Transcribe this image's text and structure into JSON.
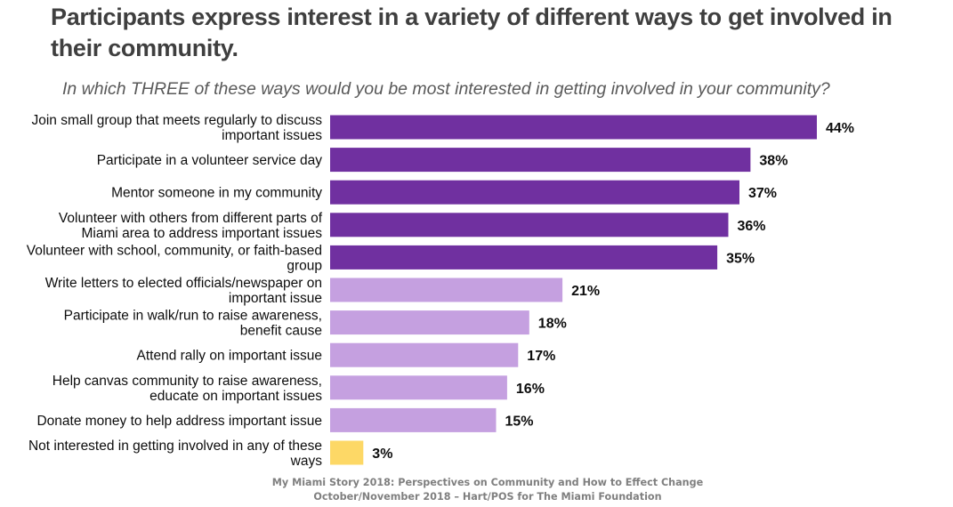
{
  "header": {
    "title": "Participants express interest in a variety of different ways to get involved in their community.",
    "subtitle": "In which THREE of these ways would you be most interested in getting involved in your community?"
  },
  "colors": {
    "top_group": "#7030a0",
    "lower_group": "#c5a0e0",
    "not_interested": "#fdd866"
  },
  "chart_data": {
    "type": "bar",
    "orientation": "horizontal",
    "title": "In which THREE of these ways would you be most interested in getting involved in your community?",
    "xlabel": "",
    "ylabel": "",
    "xlim": [
      0,
      45
    ],
    "grid": false,
    "legend": "none",
    "value_format": "percent",
    "categories": [
      [
        "Join small group that meets regularly to discuss",
        "important issues"
      ],
      [
        "Participate in a volunteer service day"
      ],
      [
        "Mentor someone in my community"
      ],
      [
        "Volunteer with others from different parts of",
        "Miami area to address important issues"
      ],
      [
        "Volunteer with school, community, or faith-based",
        "group"
      ],
      [
        "Write letters to elected officials/newspaper on",
        "important issue"
      ],
      [
        "Participate in walk/run to raise awareness,",
        "benefit cause"
      ],
      [
        "Attend rally on important issue"
      ],
      [
        "Help canvas community to raise awareness,",
        "educate on important issues"
      ],
      [
        "Donate money to help address important issue"
      ],
      [
        "Not interested in getting involved in any of these",
        "ways"
      ]
    ],
    "values": [
      44,
      38,
      37,
      36,
      35,
      21,
      18,
      17,
      16,
      15,
      3
    ],
    "data_labels": [
      "44%",
      "38%",
      "37%",
      "36%",
      "35%",
      "21%",
      "18%",
      "17%",
      "16%",
      "15%",
      "3%"
    ],
    "color_groups": [
      "top_group",
      "top_group",
      "top_group",
      "top_group",
      "top_group",
      "lower_group",
      "lower_group",
      "lower_group",
      "lower_group",
      "lower_group",
      "not_interested"
    ]
  },
  "footer": {
    "line1": "My Miami Story 2018:  Perspectives on Community and How to Effect Change",
    "line2": "October/November 2018 – Hart/POS for The Miami Foundation"
  }
}
